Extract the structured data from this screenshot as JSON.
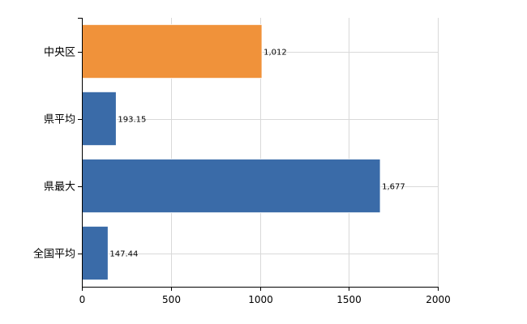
{
  "chart_data": {
    "type": "bar",
    "orientation": "horizontal",
    "categories": [
      "中央区",
      "県平均",
      "県最大",
      "全国平均"
    ],
    "values": [
      1012,
      193.15,
      1677,
      147.44
    ],
    "data_labels": [
      "1,012",
      "193.15",
      "1,677",
      "147.44"
    ],
    "bar_colors": [
      "#F0923A",
      "#3A6BA8",
      "#3A6BA8",
      "#3A6BA8"
    ],
    "bar_border_color": "#ffffff",
    "title": "",
    "xlabel": "",
    "ylabel": "",
    "xlim": [
      0,
      2000
    ],
    "x_ticks": [
      0,
      500,
      1000,
      1500,
      2000
    ],
    "x_tick_labels": [
      "0",
      "500",
      "1000",
      "1500",
      "2000"
    ],
    "grid": true,
    "legend": "none"
  }
}
